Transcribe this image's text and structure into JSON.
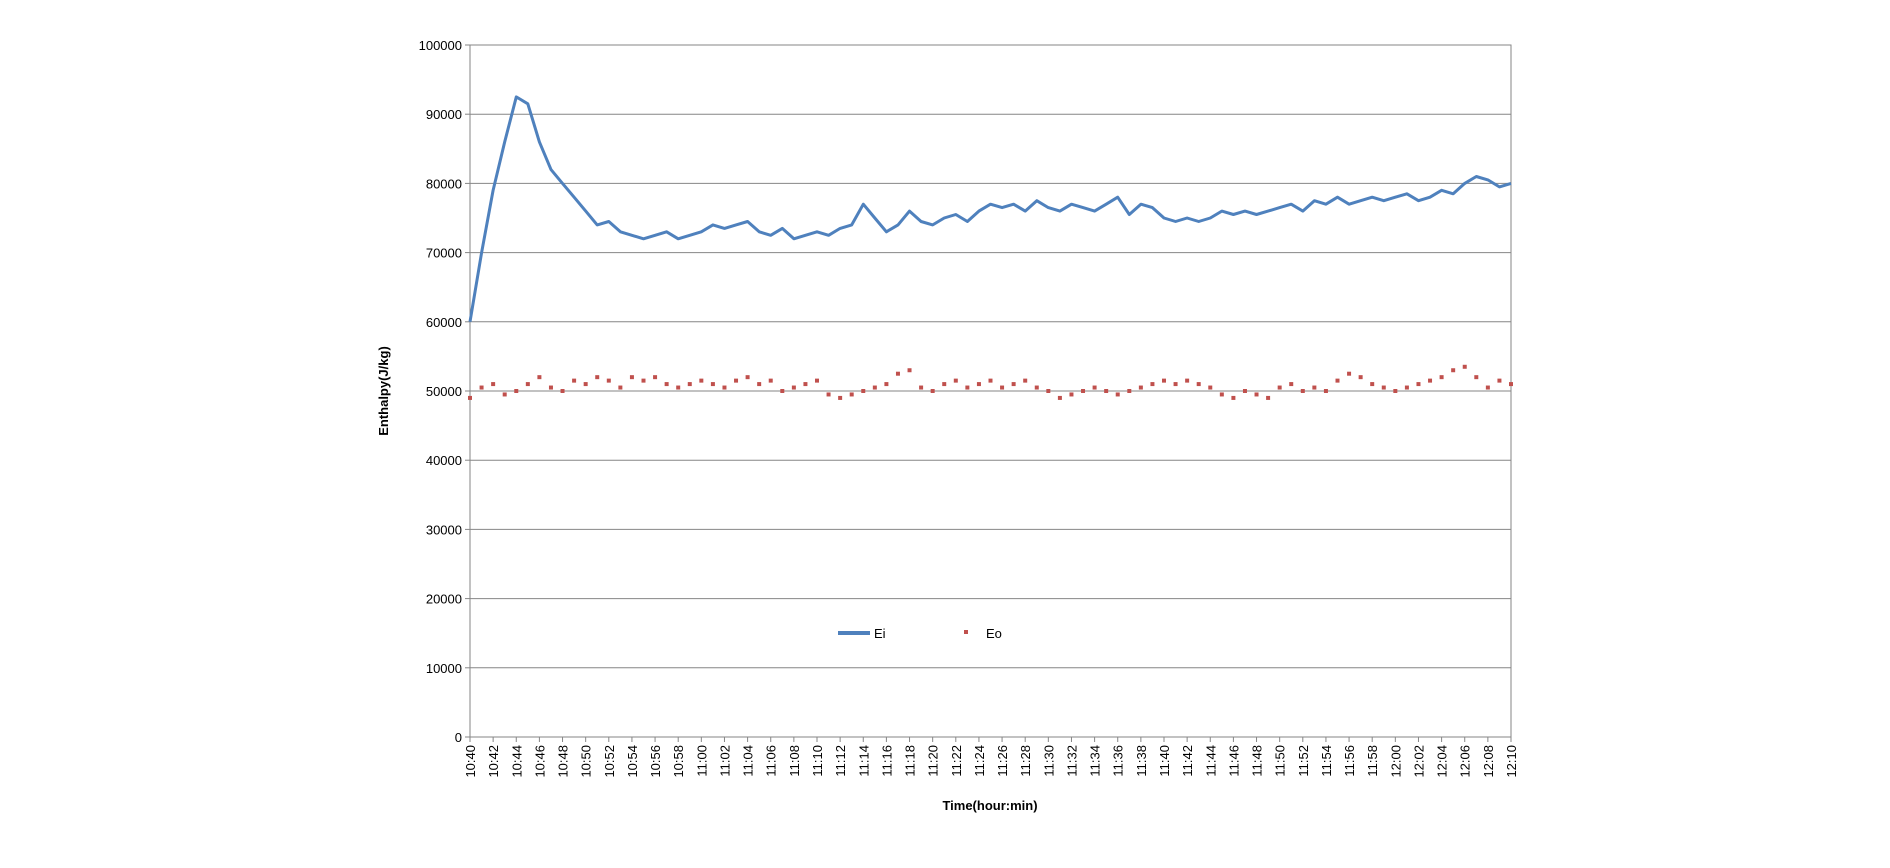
{
  "chart_data": {
    "type": "line",
    "title": "",
    "xlabel": "Time(hour:min)",
    "ylabel": "Enthalpy(J/kg)",
    "ylim": [
      0,
      100000
    ],
    "yticks": [
      0,
      10000,
      20000,
      30000,
      40000,
      50000,
      60000,
      70000,
      80000,
      90000,
      100000
    ],
    "xlim": [
      "10:40",
      "12:10"
    ],
    "xticks": [
      "10:40",
      "10:42",
      "10:44",
      "10:46",
      "10:48",
      "10:50",
      "10:52",
      "10:54",
      "10:56",
      "10:58",
      "11:00",
      "11:02",
      "11:04",
      "11:06",
      "11:08",
      "11:10",
      "11:12",
      "11:14",
      "11:16",
      "11:18",
      "11:20",
      "11:22",
      "11:24",
      "11:26",
      "11:28",
      "11:30",
      "11:32",
      "11:34",
      "11:36",
      "11:38",
      "11:40",
      "11:42",
      "11:44",
      "11:46",
      "11:48",
      "11:50",
      "11:52",
      "11:54",
      "11:56",
      "11:58",
      "12:00",
      "12:02",
      "12:04",
      "12:06",
      "12:08",
      "12:10"
    ],
    "grid": "horizontal",
    "legend_position": "inside-bottom-left",
    "series": [
      {
        "name": "Ei",
        "style": "line",
        "color": "#4F81BD",
        "x": [
          "10:40",
          "10:41",
          "10:42",
          "10:43",
          "10:44",
          "10:45",
          "10:46",
          "10:47",
          "10:48",
          "10:49",
          "10:50",
          "10:51",
          "10:52",
          "10:53",
          "10:54",
          "10:55",
          "10:56",
          "10:57",
          "10:58",
          "10:59",
          "11:00",
          "11:01",
          "11:02",
          "11:03",
          "11:04",
          "11:05",
          "11:06",
          "11:07",
          "11:08",
          "11:09",
          "11:10",
          "11:11",
          "11:12",
          "11:13",
          "11:14",
          "11:15",
          "11:16",
          "11:17",
          "11:18",
          "11:19",
          "11:20",
          "11:21",
          "11:22",
          "11:23",
          "11:24",
          "11:25",
          "11:26",
          "11:27",
          "11:28",
          "11:29",
          "11:30",
          "11:31",
          "11:32",
          "11:33",
          "11:34",
          "11:35",
          "11:36",
          "11:37",
          "11:38",
          "11:39",
          "11:40",
          "11:41",
          "11:42",
          "11:43",
          "11:44",
          "11:45",
          "11:46",
          "11:47",
          "11:48",
          "11:49",
          "11:50",
          "11:51",
          "11:52",
          "11:53",
          "11:54",
          "11:55",
          "11:56",
          "11:57",
          "11:58",
          "11:59",
          "12:00",
          "12:01",
          "12:02",
          "12:03",
          "12:04",
          "12:05",
          "12:06",
          "12:07",
          "12:08",
          "12:09",
          "12:10"
        ],
        "values": [
          60000,
          70000,
          79000,
          86000,
          92500,
          91500,
          86000,
          82000,
          80000,
          78000,
          76000,
          74000,
          74500,
          73000,
          72500,
          72000,
          72500,
          73000,
          72000,
          72500,
          73000,
          74000,
          73500,
          74000,
          74500,
          73000,
          72500,
          73500,
          72000,
          72500,
          73000,
          72500,
          73500,
          74000,
          77000,
          75000,
          73000,
          74000,
          76000,
          74500,
          74000,
          75000,
          75500,
          74500,
          76000,
          77000,
          76500,
          77000,
          76000,
          77500,
          76500,
          76000,
          77000,
          76500,
          76000,
          77000,
          78000,
          75500,
          77000,
          76500,
          75000,
          74500,
          75000,
          74500,
          75000,
          76000,
          75500,
          76000,
          75500,
          76000,
          76500,
          77000,
          76000,
          77500,
          77000,
          78000,
          77000,
          77500,
          78000,
          77500,
          78000,
          78500,
          77500,
          78000,
          79000,
          78500,
          80000,
          81000,
          80500,
          79500,
          80000
        ]
      },
      {
        "name": "Eo",
        "style": "markers",
        "color": "#C0504D",
        "x": [
          "10:40",
          "10:41",
          "10:42",
          "10:43",
          "10:44",
          "10:45",
          "10:46",
          "10:47",
          "10:48",
          "10:49",
          "10:50",
          "10:51",
          "10:52",
          "10:53",
          "10:54",
          "10:55",
          "10:56",
          "10:57",
          "10:58",
          "10:59",
          "11:00",
          "11:01",
          "11:02",
          "11:03",
          "11:04",
          "11:05",
          "11:06",
          "11:07",
          "11:08",
          "11:09",
          "11:10",
          "11:11",
          "11:12",
          "11:13",
          "11:14",
          "11:15",
          "11:16",
          "11:17",
          "11:18",
          "11:19",
          "11:20",
          "11:21",
          "11:22",
          "11:23",
          "11:24",
          "11:25",
          "11:26",
          "11:27",
          "11:28",
          "11:29",
          "11:30",
          "11:31",
          "11:32",
          "11:33",
          "11:34",
          "11:35",
          "11:36",
          "11:37",
          "11:38",
          "11:39",
          "11:40",
          "11:41",
          "11:42",
          "11:43",
          "11:44",
          "11:45",
          "11:46",
          "11:47",
          "11:48",
          "11:49",
          "11:50",
          "11:51",
          "11:52",
          "11:53",
          "11:54",
          "11:55",
          "11:56",
          "11:57",
          "11:58",
          "11:59",
          "12:00",
          "12:01",
          "12:02",
          "12:03",
          "12:04",
          "12:05",
          "12:06",
          "12:07",
          "12:08",
          "12:09",
          "12:10"
        ],
        "values": [
          49000,
          50500,
          51000,
          49500,
          50000,
          51000,
          52000,
          50500,
          50000,
          51500,
          51000,
          52000,
          51500,
          50500,
          52000,
          51500,
          52000,
          51000,
          50500,
          51000,
          51500,
          51000,
          50500,
          51500,
          52000,
          51000,
          51500,
          50000,
          50500,
          51000,
          51500,
          49500,
          49000,
          49500,
          50000,
          50500,
          51000,
          52500,
          53000,
          50500,
          50000,
          51000,
          51500,
          50500,
          51000,
          51500,
          50500,
          51000,
          51500,
          50500,
          50000,
          49000,
          49500,
          50000,
          50500,
          50000,
          49500,
          50000,
          50500,
          51000,
          51500,
          51000,
          51500,
          51000,
          50500,
          49500,
          49000,
          50000,
          49500,
          49000,
          50500,
          51000,
          50000,
          50500,
          50000,
          51500,
          52500,
          52000,
          51000,
          50500,
          50000,
          50500,
          51000,
          51500,
          52000,
          53000,
          53500,
          52000,
          50500,
          51500,
          51000
        ]
      }
    ]
  }
}
